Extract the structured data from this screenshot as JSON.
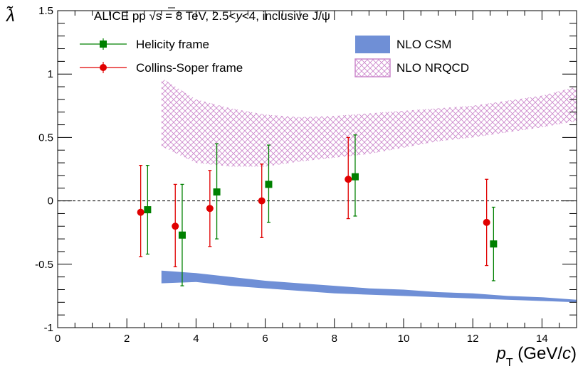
{
  "chart_data": {
    "type": "scatter",
    "title": "ALICE pp √s = 8 TeV, 2.5<y<4, inclusive J/ψ",
    "title_parts": {
      "prefix": "ALICE pp ",
      "sqrt": "√",
      "s_eq": "s = 8 TeV, 2.5<",
      "y": "y",
      "suffix": "<4, inclusive J/ψ"
    },
    "xlabel": "p_T (GeV/c)",
    "xlabel_parts": {
      "p": "p",
      "sub": "T",
      "rest": " (GeV/",
      "c": "c",
      "close": ")"
    },
    "ylabel": "λ̃",
    "xlim": [
      0,
      15
    ],
    "ylim": [
      -1,
      1.5
    ],
    "x_ticks": [
      "0",
      "2",
      "4",
      "6",
      "8",
      "10",
      "12",
      "14"
    ],
    "y_ticks": [
      "-1",
      "-0.5",
      "0",
      "0.5",
      "1",
      "1.5"
    ],
    "reference_line_y": 0,
    "legend_placement": "top",
    "series": [
      {
        "name": "Helicity frame",
        "color": "#008000",
        "marker": "square",
        "points": [
          {
            "x": 2.6,
            "y": -0.07,
            "err_low": 0.35,
            "err_high": 0.35
          },
          {
            "x": 3.6,
            "y": -0.27,
            "err_low": 0.4,
            "err_high": 0.4
          },
          {
            "x": 4.6,
            "y": 0.07,
            "err_low": 0.37,
            "err_high": 0.38
          },
          {
            "x": 6.1,
            "y": 0.13,
            "err_low": 0.3,
            "err_high": 0.31
          },
          {
            "x": 8.6,
            "y": 0.19,
            "err_low": 0.31,
            "err_high": 0.33
          },
          {
            "x": 12.6,
            "y": -0.34,
            "err_low": 0.29,
            "err_high": 0.29
          }
        ]
      },
      {
        "name": "Collins-Soper frame",
        "color": "#e00000",
        "marker": "circle",
        "points": [
          {
            "x": 2.4,
            "y": -0.09,
            "err_low": 0.35,
            "err_high": 0.37
          },
          {
            "x": 3.4,
            "y": -0.2,
            "err_low": 0.32,
            "err_high": 0.33
          },
          {
            "x": 4.4,
            "y": -0.06,
            "err_low": 0.3,
            "err_high": 0.3
          },
          {
            "x": 5.9,
            "y": 0.0,
            "err_low": 0.29,
            "err_high": 0.29
          },
          {
            "x": 8.4,
            "y": 0.17,
            "err_low": 0.31,
            "err_high": 0.33
          },
          {
            "x": 12.4,
            "y": -0.17,
            "err_low": 0.34,
            "err_high": 0.34
          }
        ]
      }
    ],
    "bands": [
      {
        "name": "NLO CSM",
        "color": "#6f8fd6",
        "style": "solid",
        "x": [
          3,
          4,
          5,
          6,
          7,
          8,
          9,
          10,
          11,
          12,
          13,
          14,
          15
        ],
        "low": [
          -0.65,
          -0.64,
          -0.67,
          -0.69,
          -0.71,
          -0.73,
          -0.74,
          -0.75,
          -0.76,
          -0.77,
          -0.78,
          -0.79,
          -0.8
        ],
        "high": [
          -0.55,
          -0.57,
          -0.6,
          -0.63,
          -0.65,
          -0.67,
          -0.69,
          -0.7,
          -0.72,
          -0.73,
          -0.75,
          -0.76,
          -0.78
        ]
      },
      {
        "name": "NLO NRQCD",
        "color": "#cc88cc",
        "style": "hatched",
        "x": [
          3,
          4,
          5,
          6,
          7,
          8,
          9,
          10,
          11,
          12,
          13,
          14,
          15
        ],
        "low": [
          0.43,
          0.3,
          0.27,
          0.27,
          0.31,
          0.34,
          0.37,
          0.42,
          0.47,
          0.5,
          0.54,
          0.58,
          0.63
        ],
        "high": [
          0.97,
          0.8,
          0.73,
          0.68,
          0.66,
          0.67,
          0.69,
          0.71,
          0.73,
          0.75,
          0.79,
          0.83,
          0.9
        ]
      }
    ]
  }
}
